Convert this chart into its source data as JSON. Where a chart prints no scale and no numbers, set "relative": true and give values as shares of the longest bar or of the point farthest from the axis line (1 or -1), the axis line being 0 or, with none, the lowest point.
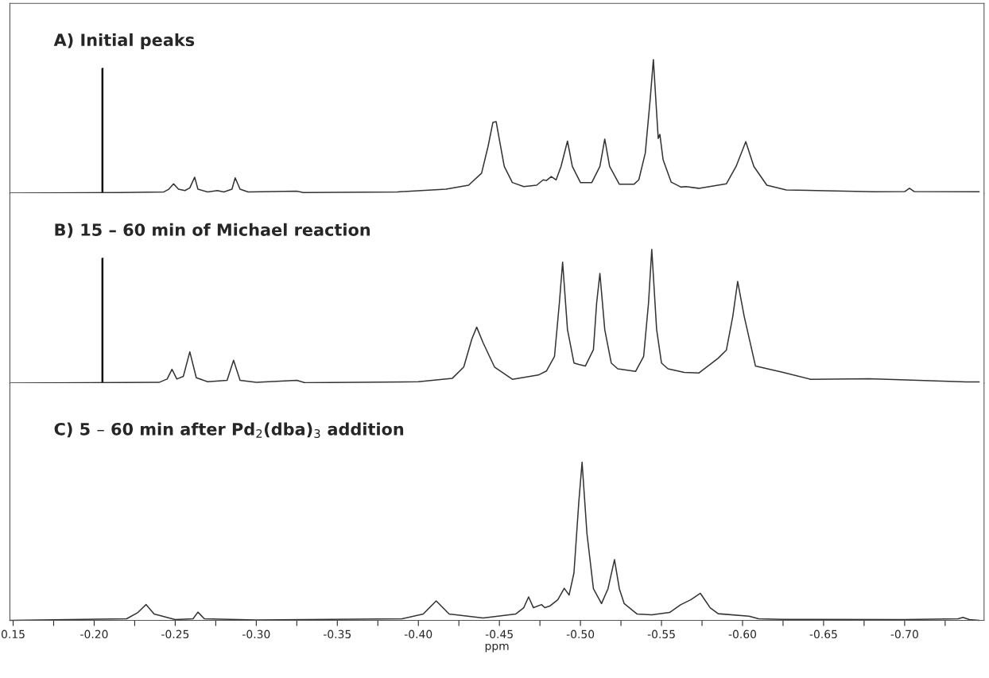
{
  "chart_data": [
    {
      "type": "line",
      "relative": true,
      "annotations": [
        "A) Initial peaks"
      ],
      "xlim": [
        -0.148,
        -0.749
      ],
      "tick_labels": false,
      "legend": false,
      "grid": false,
      "series": [
        {
          "color": "#333333",
          "x": [
            -0.148,
            -0.216,
            -0.243,
            -0.246,
            -0.249,
            -0.252,
            -0.256,
            -0.259,
            -0.262,
            -0.264,
            -0.27,
            -0.276,
            -0.28,
            -0.285,
            -0.287,
            -0.29,
            -0.295,
            -0.325,
            -0.329,
            -0.387,
            -0.417,
            -0.431,
            -0.439,
            -0.443,
            -0.446,
            -0.448,
            -0.45,
            -0.453,
            -0.458,
            -0.465,
            -0.473,
            -0.477,
            -0.479,
            -0.482,
            -0.485,
            -0.488,
            -0.492,
            -0.495,
            -0.5,
            -0.507,
            -0.512,
            -0.515,
            -0.518,
            -0.524,
            -0.533,
            -0.536,
            -0.54,
            -0.543,
            -0.545,
            -0.547,
            -0.548,
            -0.549,
            -0.551,
            -0.556,
            -0.562,
            -0.565,
            -0.573,
            -0.59,
            -0.596,
            -0.602,
            -0.607,
            -0.615,
            -0.627,
            -0.681,
            -0.7,
            -0.703,
            -0.706,
            -0.746
          ],
          "values": [
            0.0,
            0.005,
            0.01,
            0.03,
            0.07,
            0.03,
            0.02,
            0.04,
            0.12,
            0.03,
            0.01,
            0.02,
            0.01,
            0.03,
            0.115,
            0.03,
            0.01,
            0.015,
            0.005,
            0.01,
            0.03,
            0.06,
            0.15,
            0.35,
            0.53,
            0.535,
            0.4,
            0.2,
            0.08,
            0.05,
            0.06,
            0.1,
            0.095,
            0.125,
            0.1,
            0.2,
            0.39,
            0.2,
            0.08,
            0.08,
            0.2,
            0.405,
            0.2,
            0.067,
            0.067,
            0.1,
            0.3,
            0.7,
            1.0,
            0.6,
            0.41,
            0.44,
            0.25,
            0.083,
            0.046,
            0.05,
            0.037,
            0.07,
            0.2,
            0.386,
            0.2,
            0.06,
            0.025,
            0.011,
            0.012,
            0.037,
            0.012,
            0.011
          ]
        }
      ]
    },
    {
      "type": "line",
      "relative": true,
      "annotations": [
        "B) 15 – 60 min of Michael reaction"
      ],
      "xlim": [
        -0.148,
        -0.749
      ],
      "tick_labels": false,
      "legend": false,
      "grid": false,
      "series": [
        {
          "color": "#333333",
          "x": [
            -0.148,
            -0.24,
            -0.245,
            -0.248,
            -0.251,
            -0.255,
            -0.259,
            -0.263,
            -0.27,
            -0.282,
            -0.286,
            -0.29,
            -0.3,
            -0.325,
            -0.33,
            -0.4,
            -0.421,
            -0.428,
            -0.433,
            -0.436,
            -0.44,
            -0.447,
            -0.458,
            -0.474,
            -0.479,
            -0.484,
            -0.487,
            -0.489,
            -0.492,
            -0.496,
            -0.499,
            -0.503,
            -0.508,
            -0.51,
            -0.512,
            -0.515,
            -0.519,
            -0.523,
            -0.534,
            -0.539,
            -0.542,
            -0.544,
            -0.547,
            -0.55,
            -0.554,
            -0.564,
            -0.573,
            -0.585,
            -0.59,
            -0.594,
            -0.597,
            -0.601,
            -0.608,
            -0.625,
            -0.642,
            -0.678,
            -0.701,
            -0.738,
            -0.746
          ],
          "values": [
            0.0,
            0.005,
            0.03,
            0.103,
            0.03,
            0.05,
            0.234,
            0.04,
            0.01,
            0.02,
            0.17,
            0.02,
            0.005,
            0.02,
            0.003,
            0.01,
            0.036,
            0.12,
            0.33,
            0.418,
            0.3,
            0.12,
            0.028,
            0.06,
            0.09,
            0.2,
            0.6,
            0.905,
            0.4,
            0.15,
            0.139,
            0.127,
            0.25,
            0.6,
            0.82,
            0.4,
            0.15,
            0.107,
            0.087,
            0.2,
            0.6,
            1.0,
            0.4,
            0.15,
            0.107,
            0.08,
            0.075,
            0.186,
            0.246,
            0.5,
            0.76,
            0.5,
            0.127,
            0.08,
            0.028,
            0.032,
            0.024,
            0.008,
            0.008
          ]
        }
      ]
    },
    {
      "type": "line",
      "relative": true,
      "annotations": [
        "C) 5 – 60 min after Pd$_{2}$(dba)$_{3}$ addition"
      ],
      "xlim": [
        -0.148,
        -0.749
      ],
      "xlabel": "ppm",
      "tick_labels": "x",
      "legend": false,
      "grid": false,
      "xticks": [
        {
          "value": -0.15,
          "label": "0.15"
        },
        {
          "value": -0.175,
          "label": null
        },
        {
          "value": -0.2,
          "label": "-0.20"
        },
        {
          "value": -0.225,
          "label": null
        },
        {
          "value": -0.25,
          "label": "-0.25"
        },
        {
          "value": -0.275,
          "label": null
        },
        {
          "value": -0.3,
          "label": "-0.30"
        },
        {
          "value": -0.325,
          "label": null
        },
        {
          "value": -0.35,
          "label": "-0.35"
        },
        {
          "value": -0.375,
          "label": null
        },
        {
          "value": -0.4,
          "label": "-0.40"
        },
        {
          "value": -0.425,
          "label": null
        },
        {
          "value": -0.45,
          "label": "-0.45"
        },
        {
          "value": -0.475,
          "label": null
        },
        {
          "value": -0.5,
          "label": "-0.50"
        },
        {
          "value": -0.525,
          "label": null
        },
        {
          "value": -0.55,
          "label": "-0.55"
        },
        {
          "value": -0.575,
          "label": null
        },
        {
          "value": -0.6,
          "label": "-0.60"
        },
        {
          "value": -0.625,
          "label": null
        },
        {
          "value": -0.65,
          "label": "-0.65"
        },
        {
          "value": -0.675,
          "label": null
        },
        {
          "value": -0.7,
          "label": "-0.70"
        },
        {
          "value": -0.725,
          "label": null
        }
      ],
      "series": [
        {
          "color": "#333333",
          "x": [
            -0.148,
            -0.22,
            -0.227,
            -0.232,
            -0.237,
            -0.25,
            -0.261,
            -0.264,
            -0.268,
            -0.3,
            -0.39,
            -0.403,
            -0.411,
            -0.419,
            -0.44,
            -0.46,
            -0.465,
            -0.468,
            -0.471,
            -0.476,
            -0.478,
            -0.481,
            -0.486,
            -0.49,
            -0.493,
            -0.496,
            -0.499,
            -0.501,
            -0.504,
            -0.508,
            -0.513,
            -0.517,
            -0.521,
            -0.524,
            -0.527,
            -0.535,
            -0.544,
            -0.555,
            -0.562,
            -0.568,
            -0.574,
            -0.58,
            -0.585,
            -0.604,
            -0.61,
            -0.625,
            -0.7,
            -0.733,
            -0.736,
            -0.74,
            -0.746
          ],
          "values": [
            0.0,
            0.01,
            0.05,
            0.1,
            0.04,
            0.005,
            0.01,
            0.052,
            0.01,
            0.003,
            0.01,
            0.04,
            0.123,
            0.04,
            0.015,
            0.04,
            0.08,
            0.148,
            0.08,
            0.1,
            0.08,
            0.09,
            0.13,
            0.203,
            0.16,
            0.3,
            0.75,
            1.0,
            0.55,
            0.2,
            0.106,
            0.2,
            0.384,
            0.2,
            0.106,
            0.04,
            0.035,
            0.05,
            0.1,
            0.13,
            0.171,
            0.08,
            0.042,
            0.026,
            0.01,
            0.006,
            0.005,
            0.01,
            0.019,
            0.005,
            0.0
          ]
        }
      ]
    }
  ]
}
